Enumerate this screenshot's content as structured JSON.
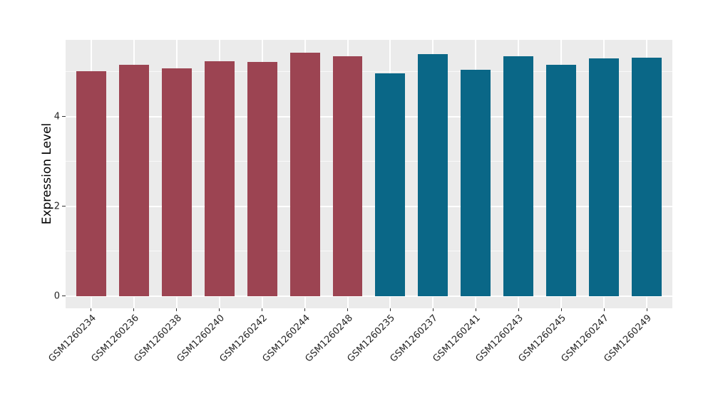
{
  "chart_data": {
    "type": "bar",
    "title": "",
    "xlabel": "",
    "ylabel": "Expression Level",
    "categories": [
      "GSM1260234",
      "GSM1260236",
      "GSM1260238",
      "GSM1260240",
      "GSM1260242",
      "GSM1260244",
      "GSM1260248",
      "GSM1260235",
      "GSM1260237",
      "GSM1260241",
      "GSM1260243",
      "GSM1260245",
      "GSM1260247",
      "GSM1260249"
    ],
    "values": [
      5.02,
      5.16,
      5.08,
      5.23,
      5.22,
      5.43,
      5.35,
      4.97,
      5.4,
      5.04,
      5.34,
      5.15,
      5.29,
      5.31
    ],
    "bar_group_index": [
      0,
      0,
      0,
      0,
      0,
      0,
      0,
      1,
      1,
      1,
      1,
      1,
      1,
      1
    ],
    "groups": [
      {
        "name": "group-a",
        "color": "#9C4452"
      },
      {
        "name": "group-b",
        "color": "#0A6787"
      }
    ],
    "yticks": [
      "0",
      "2",
      "4"
    ],
    "ytick_values": [
      0,
      2,
      4
    ],
    "ytick_minor_values": [
      1,
      3,
      5
    ],
    "ylim": [
      -0.27,
      5.71
    ],
    "bar_width_fraction": 0.7,
    "x_label_rotation_deg": 45,
    "grid": true,
    "legend": "none",
    "colors": {
      "panel_background": "#EBEBEB",
      "grid_major": "#FFFFFF",
      "grid_minor": "rgba(255,255,255,0.7)",
      "tick_mark": "#333333",
      "tick_label": "#262626",
      "axis_title": "#000000",
      "figure_background": "#FFFFFF"
    }
  }
}
